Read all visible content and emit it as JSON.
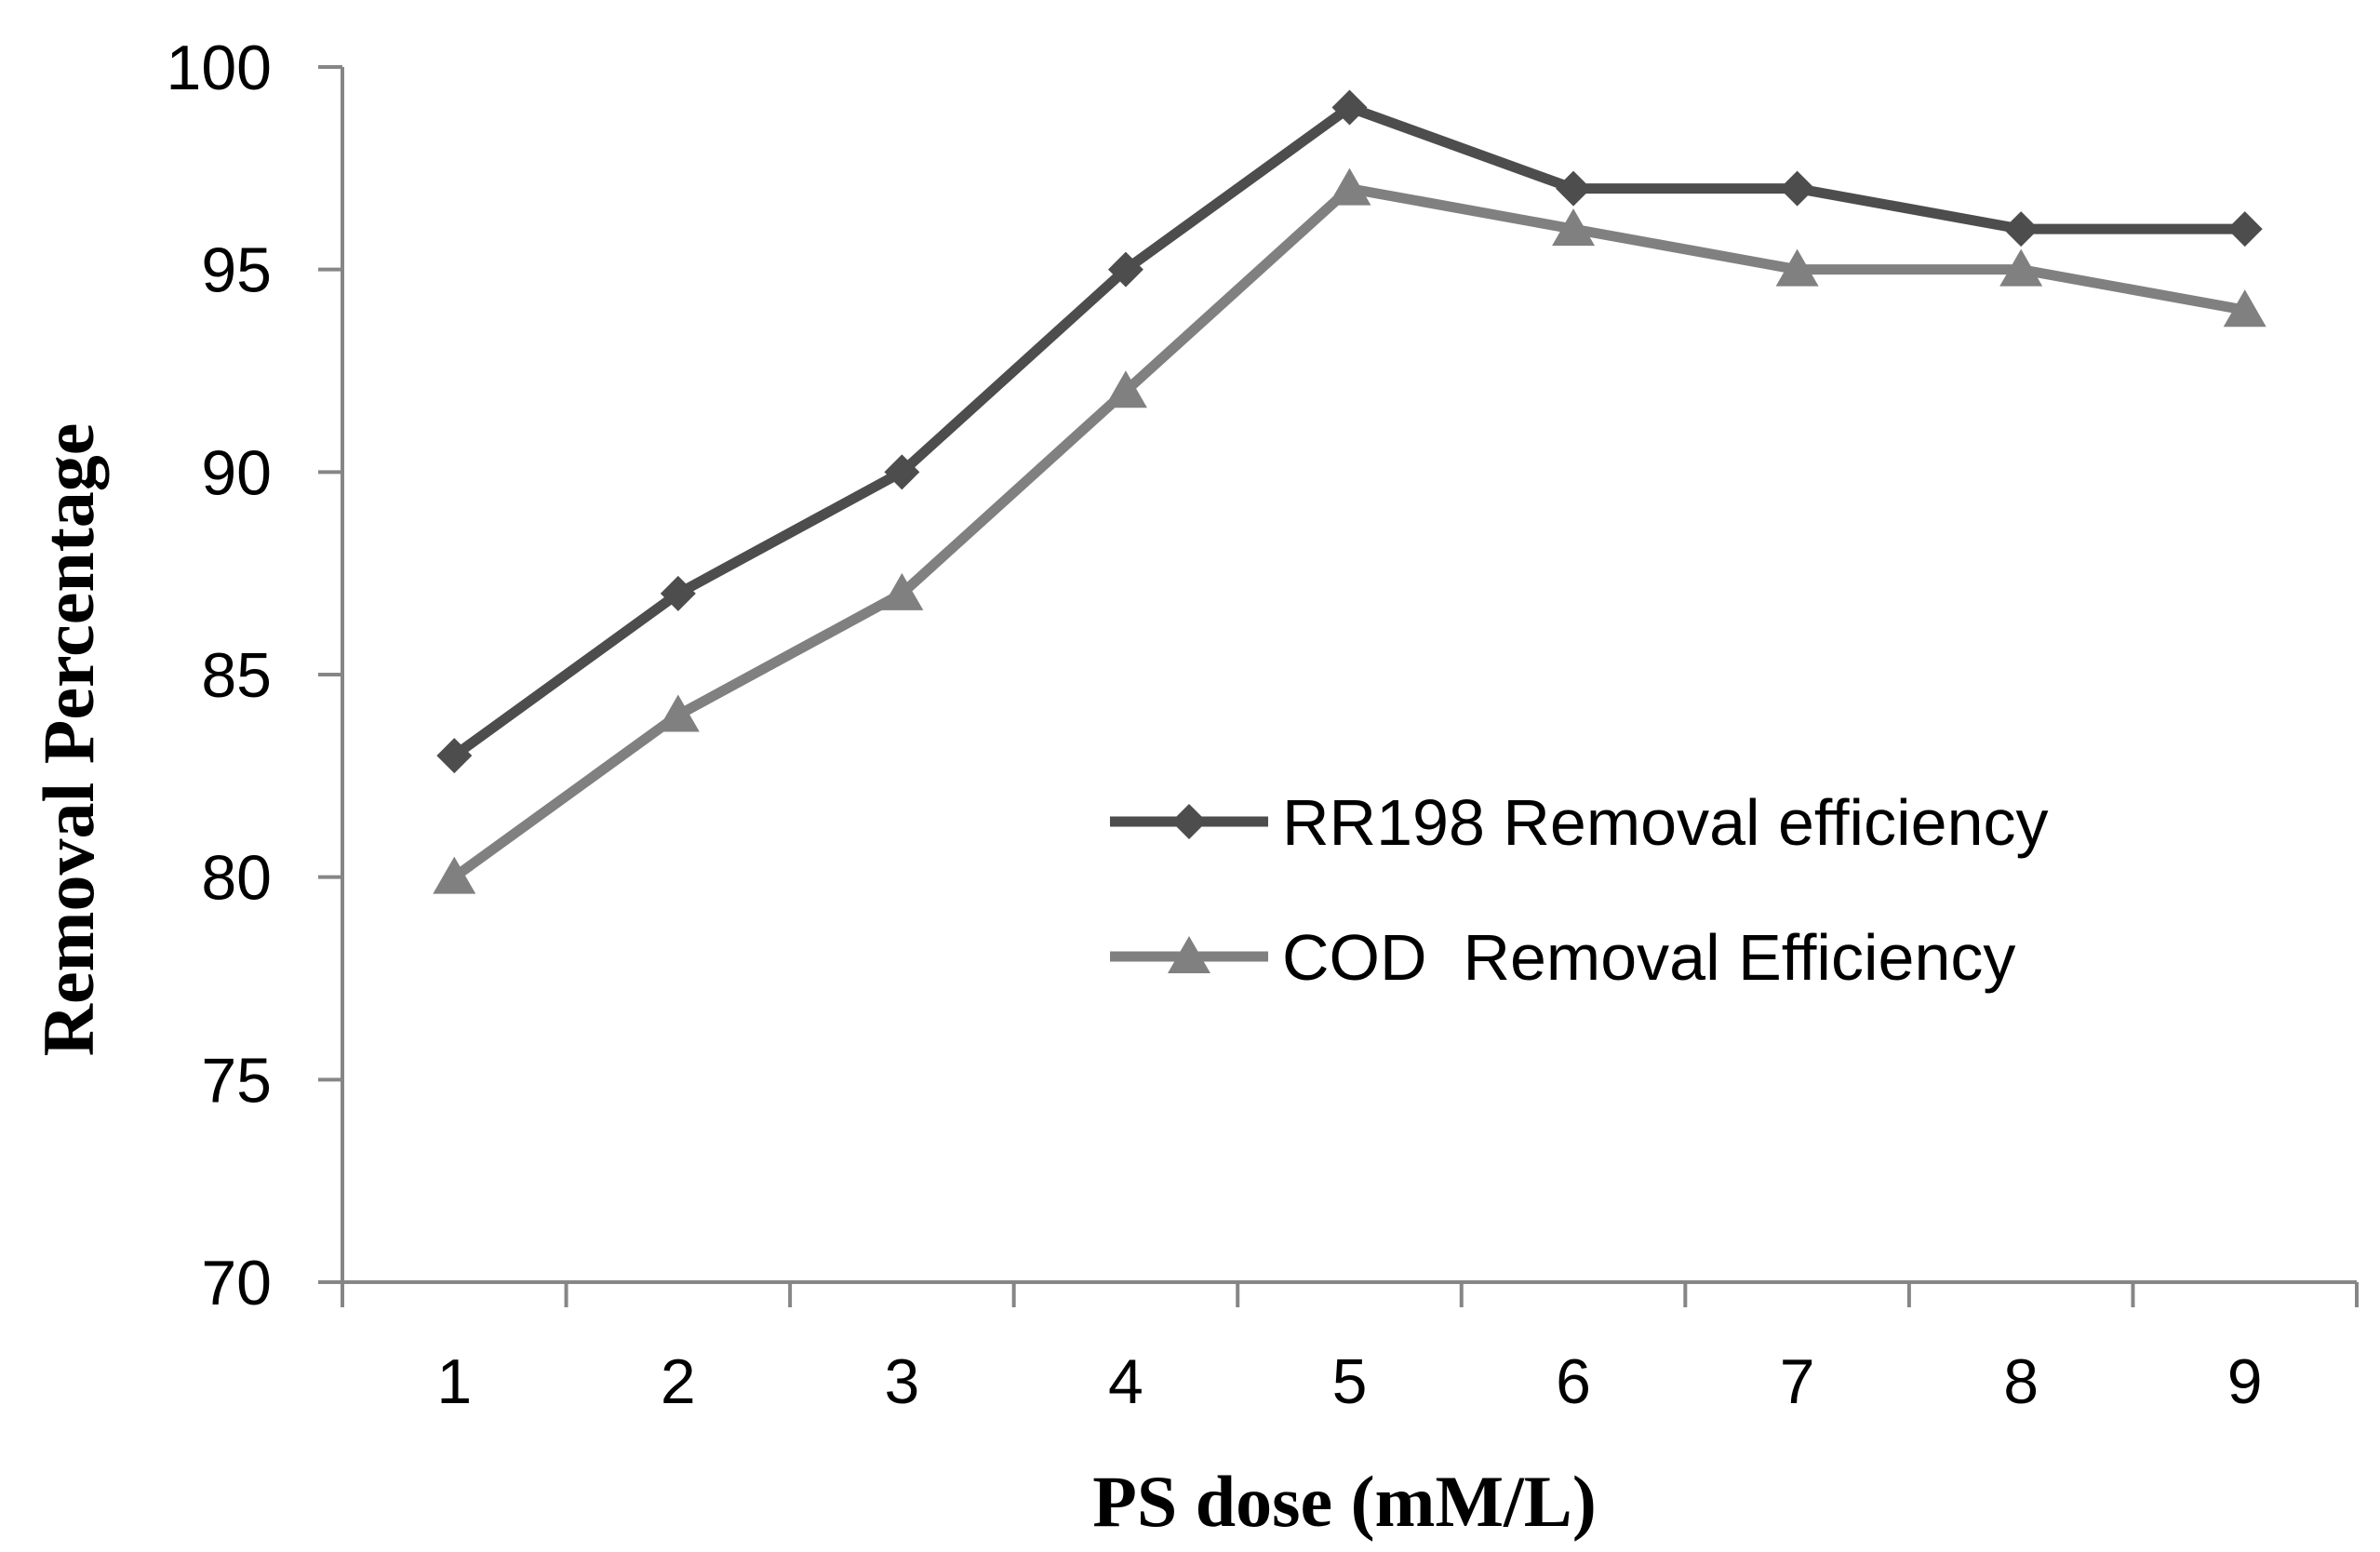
{
  "chart_data": {
    "type": "line",
    "title": "",
    "xlabel": "PS dose (mM/L)",
    "ylabel": "Removal Percentage",
    "categories": [
      "1",
      "2",
      "3",
      "4",
      "5",
      "6",
      "7",
      "8",
      "9"
    ],
    "ylim": [
      70,
      100
    ],
    "yticks": [
      "70",
      "75",
      "80",
      "85",
      "90",
      "95",
      "100"
    ],
    "grid": false,
    "legend_position": "center-right",
    "series": [
      {
        "name": "RR198 Removal efficiency",
        "marker": "diamond",
        "color": "#4d4d4d",
        "values": [
          83,
          87,
          90,
          95,
          99,
          97,
          97,
          96,
          96
        ]
      },
      {
        "name": "COD  Removal Efficiency",
        "marker": "triangle",
        "color": "#808080",
        "values": [
          80,
          84,
          87,
          92,
          97,
          96,
          95,
          95,
          94
        ]
      }
    ],
    "axis_color": "#868686"
  }
}
